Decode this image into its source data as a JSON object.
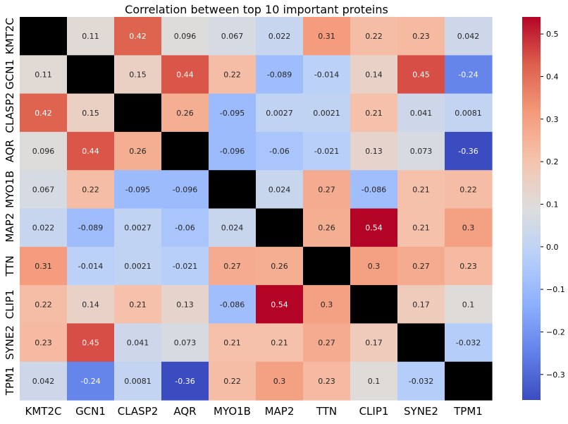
{
  "chart_data": {
    "type": "heatmap",
    "title": "Correlation between top 10 important proteins",
    "xlabel": "",
    "ylabel": "",
    "labels": [
      "KMT2C",
      "GCN1",
      "CLASP2",
      "AQR",
      "MYO1B",
      "MAP2",
      "TTN",
      "CLIP1",
      "SYNE2",
      "TPM1"
    ],
    "diagonal_masked": true,
    "diagonal_color": "#000000",
    "colormap": "coolwarm",
    "vmin": -0.36,
    "vmax": 0.54,
    "colorbar_ticks": [
      -0.3,
      -0.2,
      -0.1,
      0.0,
      0.1,
      0.2,
      0.3,
      0.4,
      0.5
    ],
    "colorbar_tick_labels": [
      "−0.3",
      "−0.2",
      "−0.1",
      "0.0",
      "0.1",
      "0.2",
      "0.3",
      "0.4",
      "0.5"
    ],
    "values": [
      [
        null,
        0.11,
        0.42,
        0.096,
        0.067,
        0.022,
        0.31,
        0.22,
        0.23,
        0.042
      ],
      [
        0.11,
        null,
        0.15,
        0.44,
        0.22,
        -0.089,
        -0.014,
        0.14,
        0.45,
        -0.24
      ],
      [
        0.42,
        0.15,
        null,
        0.26,
        -0.095,
        0.0027,
        0.0021,
        0.21,
        0.041,
        0.0081
      ],
      [
        0.096,
        0.44,
        0.26,
        null,
        -0.096,
        -0.06,
        -0.021,
        0.13,
        0.073,
        -0.36
      ],
      [
        0.067,
        0.22,
        -0.095,
        -0.096,
        null,
        0.024,
        0.27,
        -0.086,
        0.21,
        0.22
      ],
      [
        0.022,
        -0.089,
        0.0027,
        -0.06,
        0.024,
        null,
        0.26,
        0.54,
        0.21,
        0.3
      ],
      [
        0.31,
        -0.014,
        0.0021,
        -0.021,
        0.27,
        0.26,
        null,
        0.3,
        0.27,
        0.23
      ],
      [
        0.22,
        0.14,
        0.21,
        0.13,
        -0.086,
        0.54,
        0.3,
        null,
        0.17,
        0.1
      ],
      [
        0.23,
        0.45,
        0.041,
        0.073,
        0.21,
        0.21,
        0.27,
        0.17,
        null,
        -0.032
      ],
      [
        0.042,
        -0.24,
        0.0081,
        -0.36,
        0.22,
        0.3,
        0.23,
        0.1,
        -0.032,
        null
      ]
    ],
    "annotations": [
      [
        "",
        "0.11",
        "0.42",
        "0.096",
        "0.067",
        "0.022",
        "0.31",
        "0.22",
        "0.23",
        "0.042"
      ],
      [
        "0.11",
        "",
        "0.15",
        "0.44",
        "0.22",
        "-0.089",
        "-0.014",
        "0.14",
        "0.45",
        "-0.24"
      ],
      [
        "0.42",
        "0.15",
        "",
        "0.26",
        "-0.095",
        "0.0027",
        "0.0021",
        "0.21",
        "0.041",
        "0.0081"
      ],
      [
        "0.096",
        "0.44",
        "0.26",
        "",
        "-0.096",
        "-0.06",
        "-0.021",
        "0.13",
        "0.073",
        "-0.36"
      ],
      [
        "0.067",
        "0.22",
        "-0.095",
        "-0.096",
        "",
        "0.024",
        "0.27",
        "-0.086",
        "0.21",
        "0.22"
      ],
      [
        "0.022",
        "-0.089",
        "0.0027",
        "-0.06",
        "0.024",
        "",
        "0.26",
        "0.54",
        "0.21",
        "0.3"
      ],
      [
        "0.31",
        "-0.014",
        "0.0021",
        "-0.021",
        "0.27",
        "0.26",
        "",
        "0.3",
        "0.27",
        "0.23"
      ],
      [
        "0.22",
        "0.14",
        "0.21",
        "0.13",
        "-0.086",
        "0.54",
        "0.3",
        "",
        "0.17",
        "0.1"
      ],
      [
        "0.23",
        "0.45",
        "0.041",
        "0.073",
        "0.21",
        "0.21",
        "0.27",
        "0.17",
        "",
        "-0.032"
      ],
      [
        "0.042",
        "-0.24",
        "0.0081",
        "-0.36",
        "0.22",
        "0.3",
        "0.23",
        "0.1",
        "-0.032",
        ""
      ]
    ]
  }
}
